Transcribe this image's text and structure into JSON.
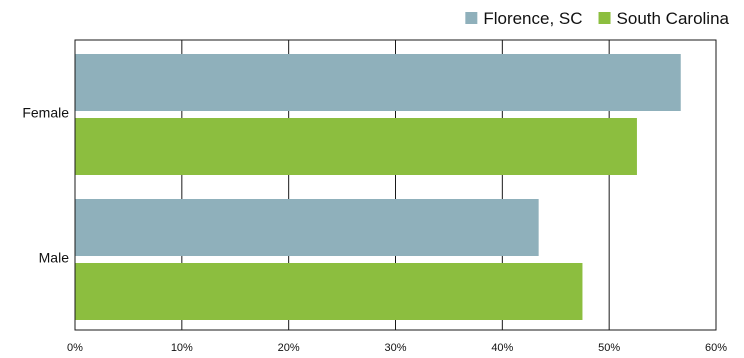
{
  "chart_data": {
    "type": "bar",
    "orientation": "horizontal",
    "categories": [
      "Female",
      "Male"
    ],
    "series": [
      {
        "name": "Florence, SC",
        "color": "#8fb0bb",
        "values": [
          56.7,
          43.4
        ]
      },
      {
        "name": "South Carolina",
        "color": "#8cbe3f",
        "values": [
          52.6,
          47.5
        ]
      }
    ],
    "x_ticks": [
      "0%",
      "10%",
      "20%",
      "30%",
      "40%",
      "50%",
      "60%"
    ],
    "xlim": [
      0,
      60
    ],
    "xlabel": "",
    "ylabel": "",
    "title": "",
    "grid": "vertical",
    "legend_position": "top-right"
  }
}
